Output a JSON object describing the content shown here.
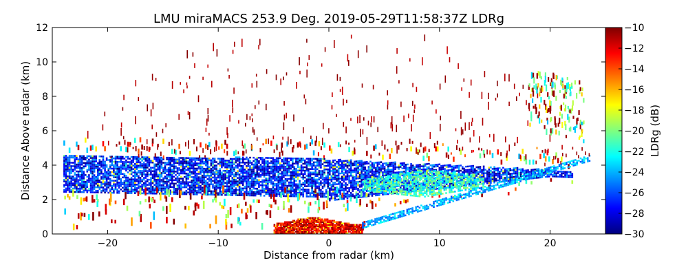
{
  "chart_data": {
    "type": "heatmap",
    "title": "LMU miraMACS 253.9 Deg. 2019-05-29T11:58:37Z  LDRg",
    "xlabel": "Distance from radar (km)",
    "ylabel": "Distance Above radar  (km)",
    "xlim": [
      -25,
      25
    ],
    "ylim": [
      0,
      12
    ],
    "xticks": [
      -20,
      -10,
      0,
      10,
      20
    ],
    "xtick_labels": [
      "−20",
      "−10",
      "0",
      "10",
      "20"
    ],
    "yticks": [
      0,
      2,
      4,
      6,
      8,
      10,
      12
    ],
    "ytick_labels": [
      "0",
      "2",
      "4",
      "6",
      "8",
      "10",
      "12"
    ],
    "colorbar": {
      "label": "LDRg (dB)",
      "range": [
        -30,
        -10
      ],
      "ticks": [
        -30,
        -28,
        -26,
        -24,
        -22,
        -20,
        -18,
        -16,
        -14,
        -12,
        -10
      ],
      "tick_labels": [
        "−30",
        "−28",
        "−26",
        "−24",
        "−22",
        "−20",
        "−18",
        "−16",
        "−14",
        "−12",
        "−10"
      ],
      "colormap": "jet"
    },
    "regions": [
      {
        "name": "main-cloud-layer",
        "x_range": [
          -24,
          22
        ],
        "y_range": [
          1.8,
          4.7
        ],
        "ldr_range": [
          -30,
          -24
        ],
        "typical_ldr": -27
      },
      {
        "name": "green-cyan-core",
        "x_range": [
          3,
          14
        ],
        "y_range": [
          2.0,
          3.6
        ],
        "ldr_range": [
          -24,
          -19
        ],
        "typical_ldr": -22
      },
      {
        "name": "near-ground-clutter",
        "x_range": [
          -5,
          3
        ],
        "y_range": [
          0,
          1.0
        ],
        "ldr_range": [
          -14,
          -10
        ],
        "typical_ldr": -11
      },
      {
        "name": "upper-sparse-echoes",
        "x_range": [
          -22,
          23
        ],
        "y_range": [
          4.5,
          11.5
        ],
        "ldr_range": [
          -12,
          -10
        ],
        "typical_ldr": -10
      },
      {
        "name": "right-edge-echoes",
        "x_range": [
          18,
          23
        ],
        "y_range": [
          6,
          9.5
        ],
        "ldr_range": [
          -24,
          -16
        ],
        "typical_ldr": -20
      },
      {
        "name": "scan-edge-line",
        "x_range": [
          3,
          23.5
        ],
        "y_range": [
          0.3,
          4.2
        ],
        "ldr_range": [
          -26,
          -22
        ],
        "typical_ldr": -24
      }
    ]
  }
}
